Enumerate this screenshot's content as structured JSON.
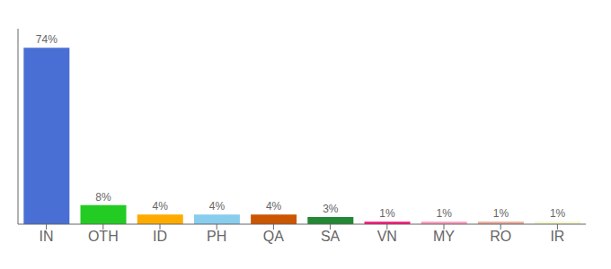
{
  "chart_data": {
    "type": "bar",
    "categories": [
      "IN",
      "OTH",
      "ID",
      "PH",
      "QA",
      "SA",
      "VN",
      "MY",
      "RO",
      "IR"
    ],
    "values": [
      74,
      8,
      4,
      4,
      4,
      3,
      1,
      1,
      1,
      1
    ],
    "value_labels": [
      "74%",
      "8%",
      "4%",
      "4%",
      "4%",
      "3%",
      "1%",
      "1%",
      "1%",
      "1%"
    ],
    "colors": [
      "#4a6fd4",
      "#22cc22",
      "#ffaa00",
      "#88ccee",
      "#cc5500",
      "#228833",
      "#ff1177",
      "#ff99bb",
      "#e8a898",
      "#f5f5cc"
    ],
    "ylim": [
      0,
      82
    ],
    "data_labels": true,
    "tick_labels": "x",
    "grid": false
  }
}
